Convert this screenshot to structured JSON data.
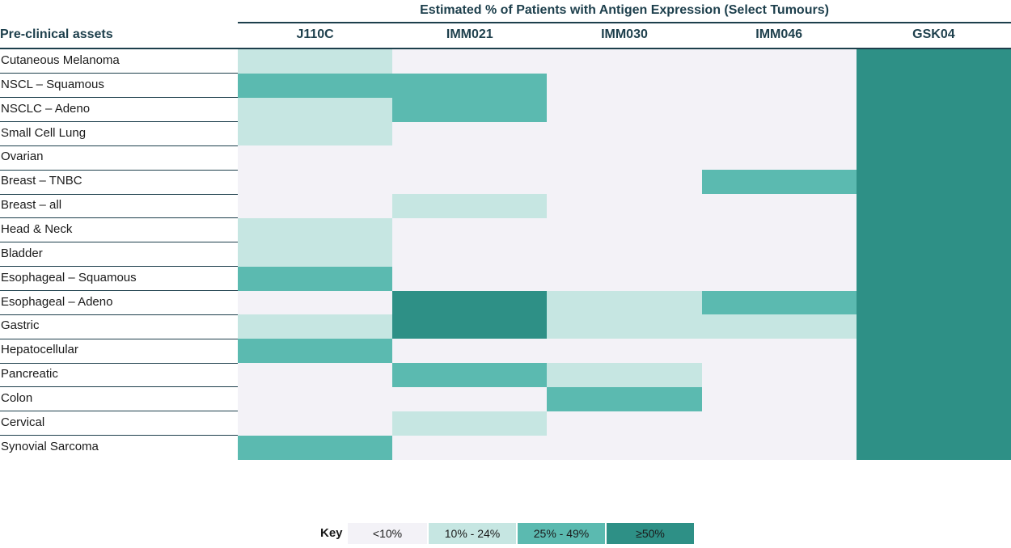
{
  "chart_data": {
    "type": "heatmap",
    "title": "Estimated % of Patients with Antigen Expression (Select Tumours)",
    "row_header": "Pre-clinical assets",
    "columns": [
      "J110C",
      "IMM021",
      "IMM030",
      "IMM046",
      "GSK04"
    ],
    "rows": [
      "Cutaneous Melanoma",
      "NSCL – Squamous",
      "NSCLC – Adeno",
      "Small Cell Lung",
      "Ovarian",
      "Breast – TNBC",
      "Breast – all",
      "Head & Neck",
      "Bladder",
      "Esophageal – Squamous",
      "Esophageal – Adeno",
      "Gastric",
      "Hepatocellular",
      "Pancreatic",
      "Colon",
      "Cervical",
      "Synovial Sarcoma"
    ],
    "levels": [
      [
        1,
        0,
        0,
        0,
        3
      ],
      [
        2,
        2,
        0,
        0,
        3
      ],
      [
        1,
        2,
        0,
        0,
        3
      ],
      [
        1,
        0,
        0,
        0,
        3
      ],
      [
        0,
        0,
        0,
        0,
        3
      ],
      [
        0,
        0,
        0,
        2,
        3
      ],
      [
        0,
        1,
        0,
        0,
        3
      ],
      [
        1,
        0,
        0,
        0,
        3
      ],
      [
        1,
        0,
        0,
        0,
        3
      ],
      [
        2,
        0,
        0,
        0,
        3
      ],
      [
        0,
        3,
        1,
        2,
        3
      ],
      [
        1,
        3,
        1,
        1,
        3
      ],
      [
        2,
        0,
        0,
        0,
        3
      ],
      [
        0,
        2,
        1,
        0,
        3
      ],
      [
        0,
        0,
        2,
        0,
        3
      ],
      [
        0,
        1,
        0,
        0,
        3
      ],
      [
        2,
        0,
        0,
        0,
        3
      ]
    ],
    "key_title": "Key",
    "key": [
      {
        "label": "<10%",
        "color": "#f3f2f7"
      },
      {
        "label": "10% - 24%",
        "color": "#c6e6e2"
      },
      {
        "label": "25% - 49%",
        "color": "#5bbab0"
      },
      {
        "label": "≥50%",
        "color": "#2e9086"
      }
    ]
  }
}
